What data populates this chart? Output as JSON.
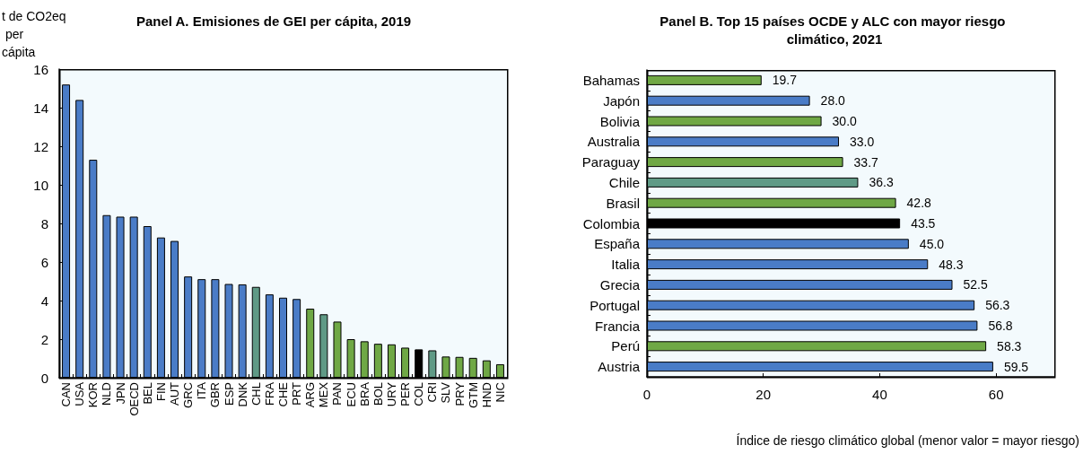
{
  "chart_data": [
    {
      "type": "bar",
      "title": "Panel A. Emisiones de GEI per cápita, 2019",
      "ylabel": "t de CO2eq per cápita",
      "categories": [
        "CAN",
        "USA",
        "KOR",
        "NLD",
        "JPN",
        "OECD",
        "BEL",
        "FIN",
        "AUT",
        "GRC",
        "ITA",
        "GBR",
        "ESP",
        "DNK",
        "CHL",
        "FRA",
        "CHE",
        "PRT",
        "ARG",
        "MEX",
        "PAN",
        "ECU",
        "BRA",
        "BOL",
        "URY",
        "PER",
        "COL",
        "CRI",
        "SLV",
        "PRY",
        "GTM",
        "HND",
        "NIC"
      ],
      "values": [
        15.2,
        14.4,
        11.3,
        8.43,
        8.35,
        8.35,
        7.86,
        7.27,
        7.09,
        5.25,
        5.11,
        5.11,
        4.86,
        4.84,
        4.71,
        4.32,
        4.15,
        4.08,
        3.58,
        3.29,
        2.91,
        2.0,
        1.89,
        1.76,
        1.73,
        1.56,
        1.47,
        1.42,
        1.1,
        1.08,
        1.03,
        0.9,
        0.7
      ],
      "colors": [
        "#4a7cc7",
        "#4a7cc7",
        "#4a7cc7",
        "#4a7cc7",
        "#4a7cc7",
        "#4a7cc7",
        "#4a7cc7",
        "#4a7cc7",
        "#4a7cc7",
        "#4a7cc7",
        "#4a7cc7",
        "#4a7cc7",
        "#4a7cc7",
        "#4a7cc7",
        "#5f9a86",
        "#4a7cc7",
        "#4a7cc7",
        "#4a7cc7",
        "#6fa845",
        "#5f9a86",
        "#6fa845",
        "#6fa845",
        "#6fa845",
        "#6fa845",
        "#6fa845",
        "#6fa845",
        "#000000",
        "#5f9a86",
        "#6fa845",
        "#6fa845",
        "#6fa845",
        "#6fa845",
        "#6fa845"
      ],
      "ylim": [
        0,
        16
      ],
      "yticks": [
        0,
        2,
        4,
        6,
        8,
        10,
        12,
        14,
        16
      ]
    },
    {
      "type": "bar",
      "orientation": "horizontal",
      "title": "Panel B. Top 15 países OCDE y ALC con mayor riesgo climático, 2021",
      "xlabel": "Índice de riesgo climático global (menor valor = mayor riesgo)",
      "categories": [
        "Bahamas",
        "Japón",
        "Bolivia",
        "Australia",
        "Paraguay",
        "Chile",
        "Brasil",
        "Colombia",
        "España",
        "Italia",
        "Grecia",
        "Portugal",
        "Francia",
        "Perú",
        "Austria"
      ],
      "values": [
        19.7,
        28.0,
        30.0,
        33.0,
        33.7,
        36.3,
        42.8,
        43.5,
        45.0,
        48.3,
        52.5,
        56.3,
        56.8,
        58.3,
        59.5
      ],
      "value_labels": [
        "19.7",
        "28.0",
        "30.0",
        "33.0",
        "33.7",
        "36.3",
        "42.8",
        "43.5",
        "45.0",
        "48.3",
        "52.5",
        "56.3",
        "56.8",
        "58.3",
        "59.5"
      ],
      "colors": [
        "#6fa845",
        "#4a7cc7",
        "#6fa845",
        "#4a7cc7",
        "#6fa845",
        "#5f9a86",
        "#6fa845",
        "#000000",
        "#4a7cc7",
        "#4a7cc7",
        "#4a7cc7",
        "#4a7cc7",
        "#4a7cc7",
        "#6fa845",
        "#4a7cc7"
      ],
      "xlim": [
        0,
        70
      ],
      "xticks": [
        0,
        20,
        40,
        60
      ]
    }
  ]
}
